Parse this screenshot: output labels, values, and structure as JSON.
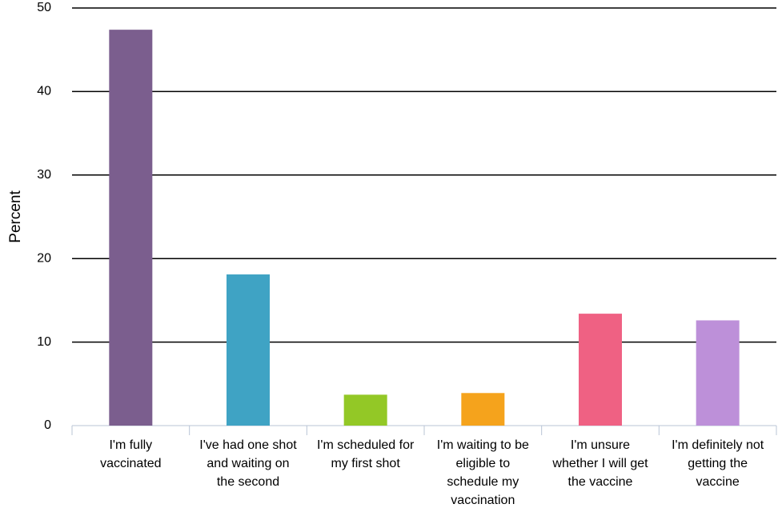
{
  "chart_data": {
    "type": "bar",
    "ylabel": "Percent",
    "categories": [
      "I'm fully vaccinated",
      "I've had one shot and waiting on the second",
      "I'm scheduled for my first shot",
      "I'm waiting to be eligible to schedule my vaccination",
      "I'm unsure whether I will get the vaccine",
      "I'm definitely not getting the vaccine"
    ],
    "values": [
      47.4,
      18.1,
      3.7,
      3.9,
      13.4,
      12.6
    ],
    "colors": [
      "#7b5e8e",
      "#3fa3c4",
      "#93c826",
      "#f5a31c",
      "#ef6183",
      "#bd90d9"
    ],
    "ylim": [
      0,
      50
    ],
    "yticks": [
      0,
      10,
      20,
      30,
      40,
      50
    ],
    "grid": true
  }
}
